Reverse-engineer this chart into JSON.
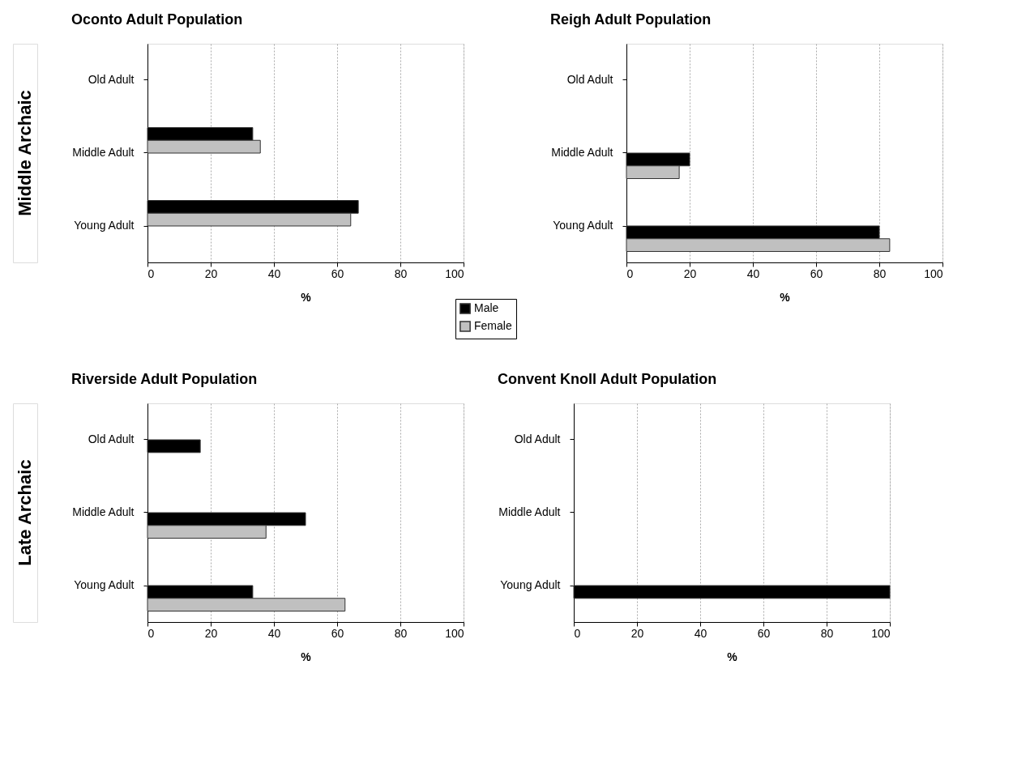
{
  "chart_data": [
    {
      "type": "bar",
      "orientation": "horizontal",
      "title": "Oconto Adult Population",
      "xlabel": "%",
      "annotations": [
        "Middle Archaic"
      ],
      "categories": [
        "Old Adult",
        "Middle Adult",
        "Young Adult"
      ],
      "series": [
        {
          "name": "Male",
          "color": "#000000",
          "values": [
            null,
            33.3,
            66.7
          ]
        },
        {
          "name": "Female",
          "color": "#c0c0c0",
          "values": [
            null,
            35.7,
            64.3
          ]
        }
      ],
      "xlim": [
        0,
        100
      ],
      "xticks": [
        0,
        20,
        40,
        60,
        80,
        100
      ],
      "grid": "x",
      "legend": "bottom right"
    },
    {
      "type": "bar",
      "orientation": "horizontal",
      "title": "Reigh Adult Population",
      "xlabel": "%",
      "categories": [
        "Old Adult",
        "Middle Adult",
        "Young Adult"
      ],
      "series": [
        {
          "color": "#000000",
          "values": [
            null,
            20,
            80
          ]
        },
        {
          "color": "#c0c0c0",
          "values": [
            null,
            16.7,
            83.3
          ]
        }
      ],
      "xlim": [
        0,
        100
      ],
      "xticks": [
        0,
        20,
        40,
        60,
        80,
        100
      ],
      "grid": "x"
    },
    {
      "type": "bar",
      "orientation": "horizontal",
      "title": "Riverside Adult Population",
      "xlabel": "%",
      "annotations": [
        "Late Archaic"
      ],
      "categories": [
        "Old Adult",
        "Middle Adult",
        "Young Adult"
      ],
      "series": [
        {
          "color": "#000000",
          "values": [
            16.7,
            50,
            33.3
          ]
        },
        {
          "color": "#c0c0c0",
          "values": [
            null,
            37.5,
            62.5
          ]
        }
      ],
      "xlim": [
        0,
        100
      ],
      "xticks": [
        0,
        20,
        40,
        60,
        80,
        100
      ],
      "grid": "x"
    },
    {
      "type": "bar",
      "orientation": "horizontal",
      "title": "Convent Knoll Adult Population",
      "xlabel": "%",
      "categories": [
        "Old Adult",
        "Middle Adult",
        "Young Adult"
      ],
      "series": [
        {
          "color": "#000000",
          "values": [
            null,
            null,
            100
          ]
        },
        {
          "color": "#c0c0c0",
          "values": [
            null,
            null,
            null
          ]
        }
      ],
      "xlim": [
        0,
        100
      ],
      "xticks": [
        0,
        20,
        40,
        60,
        80,
        100
      ],
      "grid": "x"
    }
  ]
}
